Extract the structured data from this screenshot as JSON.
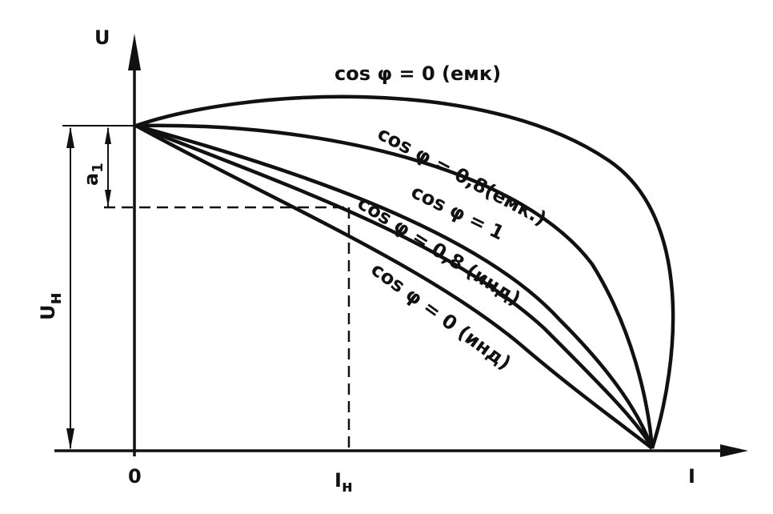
{
  "axes": {
    "y_label": "U",
    "x_label": "I",
    "origin": "0"
  },
  "rated_current": {
    "text": "I",
    "sub": "н"
  },
  "rated_voltage": {
    "text": "U",
    "sub": "н"
  },
  "drop": {
    "text": "a",
    "sub": "1"
  },
  "curves": [
    {
      "label": "cos φ = 0 (емк)"
    },
    {
      "label": "cos φ = 0,8(емк.)"
    },
    {
      "label": "cos φ = 1"
    },
    {
      "label": "cos φ = 0,8 (инд)"
    },
    {
      "label": "cos φ = 0 (инд)"
    }
  ]
}
